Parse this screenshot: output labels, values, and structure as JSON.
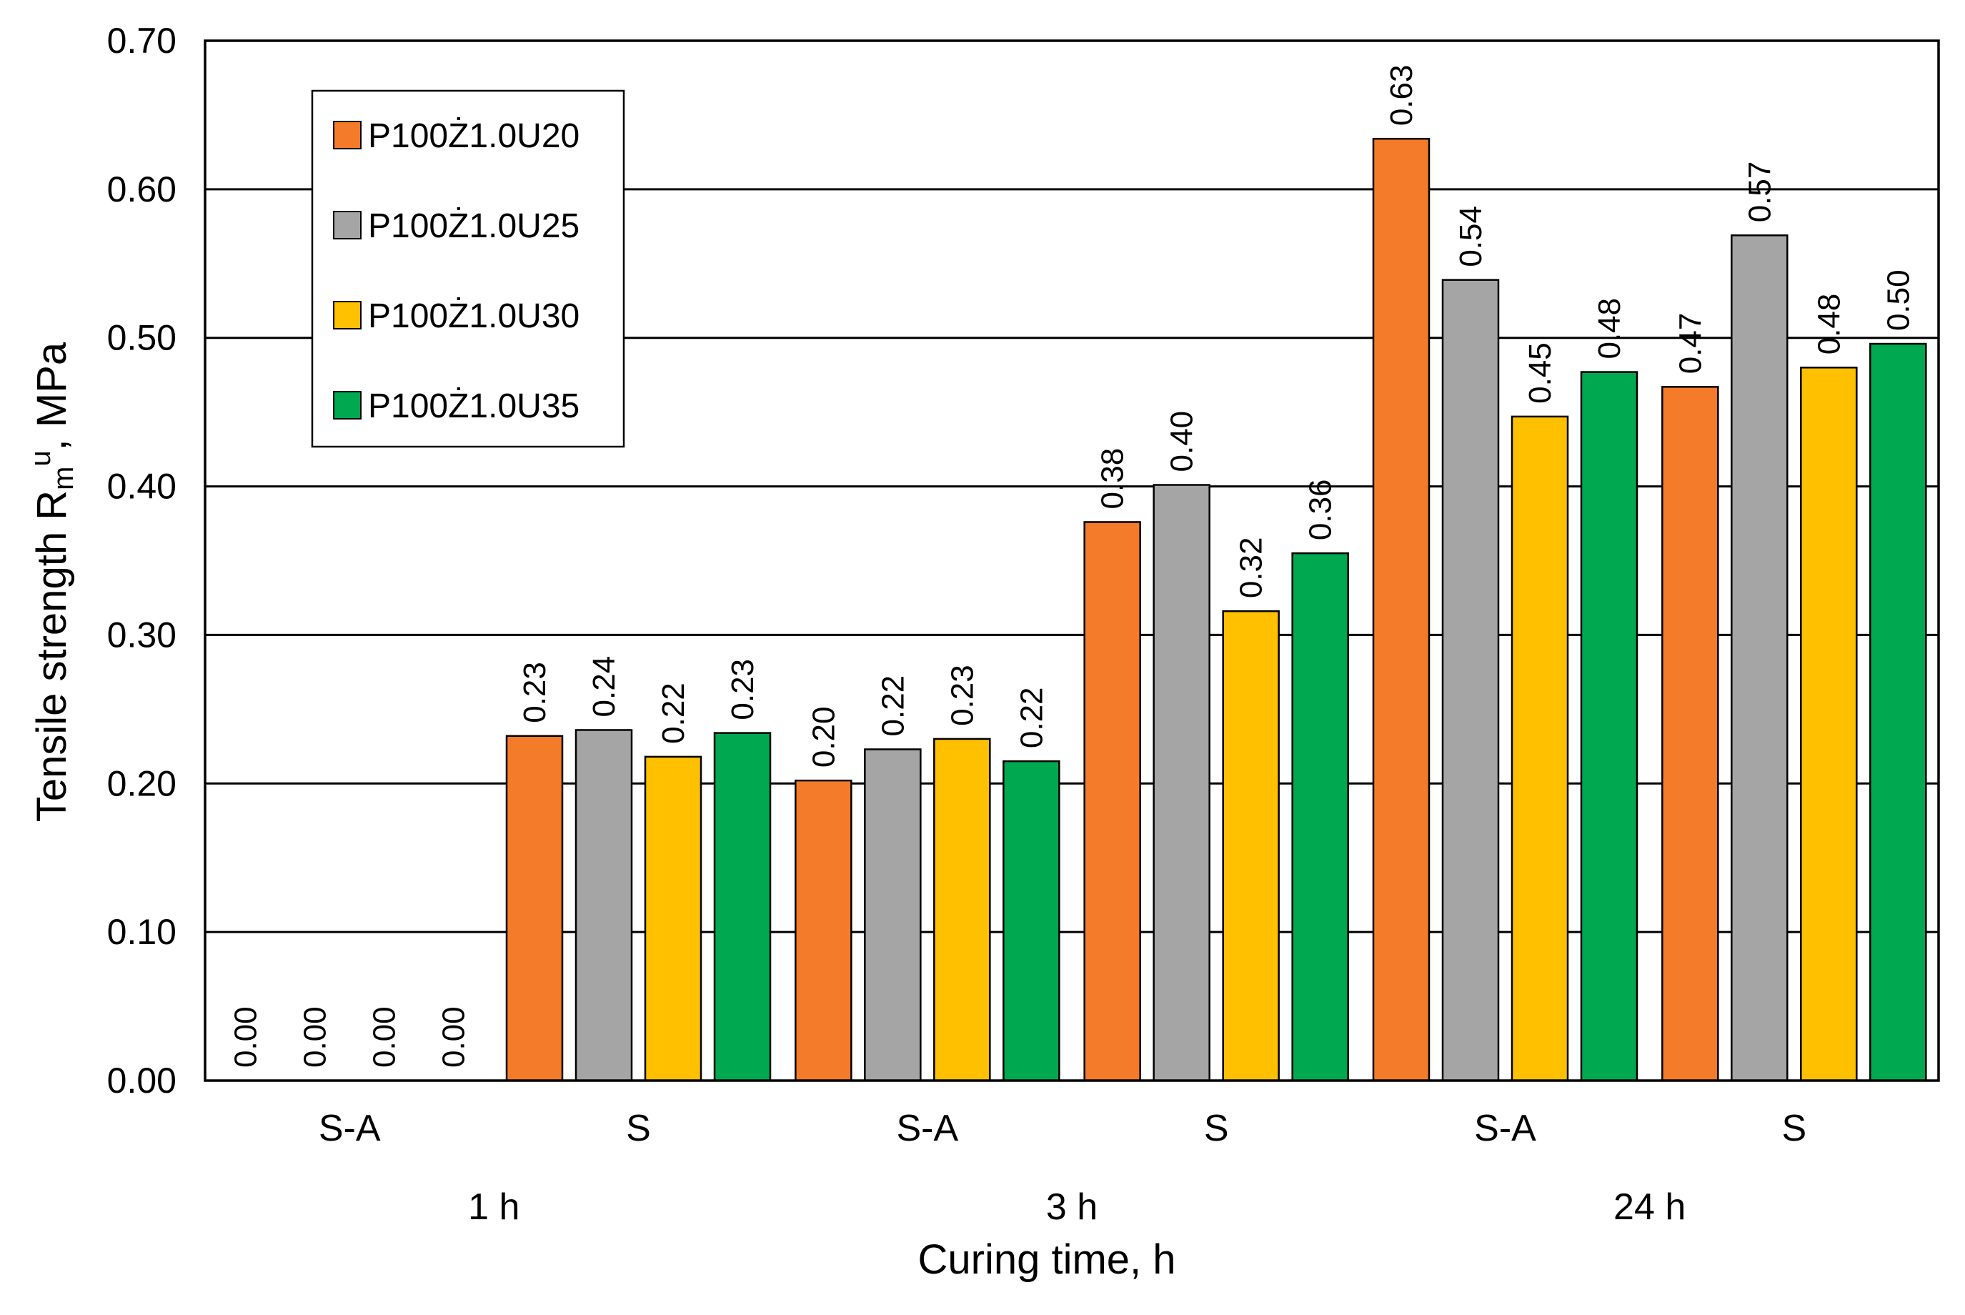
{
  "chart_data": {
    "type": "bar",
    "title": "",
    "ylabel": {
      "main": "Tensile strength R",
      "sub": "m",
      "sup": "u",
      "suffix": ", MPa"
    },
    "xlabel": "Curing time, h",
    "ylim": [
      0,
      0.7
    ],
    "yticks": [
      "0.00",
      "0.10",
      "0.20",
      "0.30",
      "0.40",
      "0.50",
      "0.60",
      "0.70"
    ],
    "categories": [
      "S-A",
      "S",
      "S-A",
      "S",
      "S-A",
      "S"
    ],
    "groups": [
      {
        "label": "1 h",
        "span": [
          0,
          1
        ]
      },
      {
        "label": "3 h",
        "span": [
          2,
          3
        ]
      },
      {
        "label": "24 h",
        "span": [
          4,
          5
        ]
      }
    ],
    "legend_position": "top-left",
    "series": [
      {
        "name": "P100Ż1.0U20",
        "color": "#F47B2A",
        "values": [
          0.0,
          0.232,
          0.202,
          0.376,
          0.634,
          0.467
        ],
        "labels": [
          "0.00",
          "0.23",
          "0.20",
          "0.38",
          "0.63",
          "0.47"
        ]
      },
      {
        "name": "P100Ż1.0U25",
        "color": "#A5A5A5",
        "values": [
          0.0,
          0.236,
          0.223,
          0.401,
          0.539,
          0.569
        ],
        "labels": [
          "0.00",
          "0.24",
          "0.22",
          "0.40",
          "0.54",
          "0.57"
        ]
      },
      {
        "name": "P100Ż1.0U30",
        "color": "#FFC000",
        "values": [
          0.0,
          0.218,
          0.23,
          0.316,
          0.447,
          0.48
        ],
        "labels": [
          "0.00",
          "0.22",
          "0.23",
          "0.32",
          "0.45",
          "0.48"
        ]
      },
      {
        "name": "P100Ż1.0U35",
        "color": "#00A84F",
        "values": [
          0.0,
          0.234,
          0.215,
          0.355,
          0.477,
          0.496
        ],
        "labels": [
          "0.00",
          "0.23",
          "0.22",
          "0.36",
          "0.48",
          "0.50"
        ]
      }
    ]
  }
}
